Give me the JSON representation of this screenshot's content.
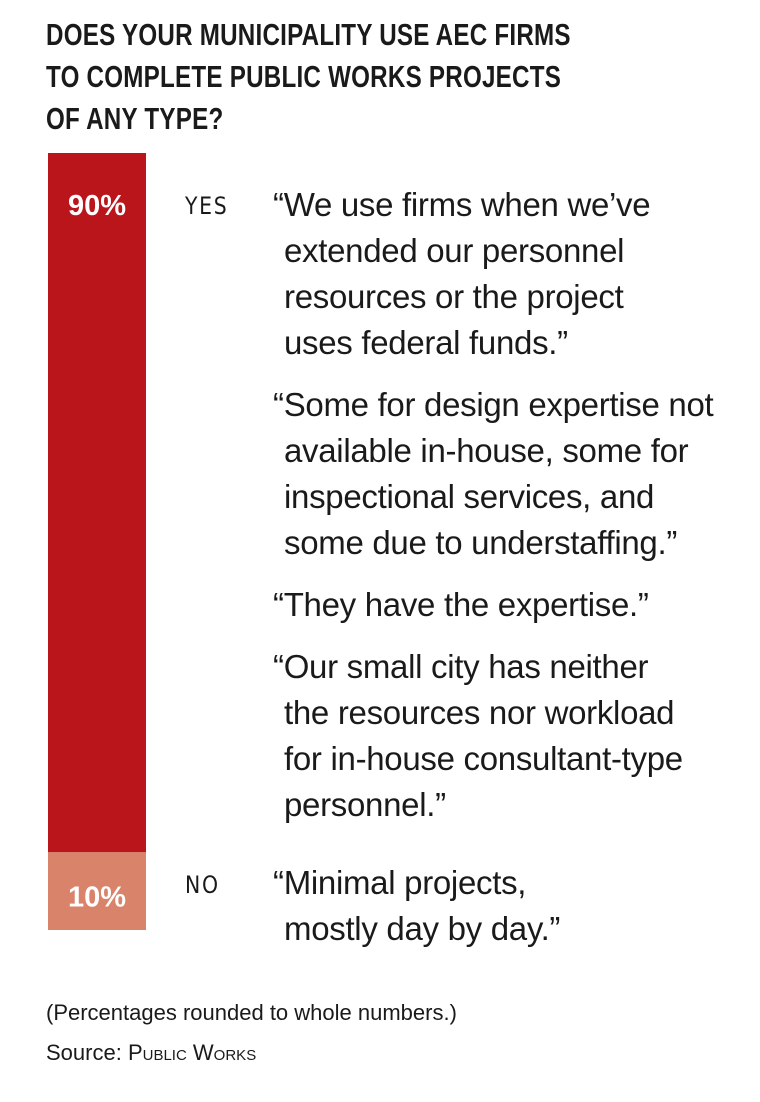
{
  "chart_data": {
    "type": "bar",
    "stacked": true,
    "title": "DOES YOUR MUNICIPALITY USE AEC FIRMS TO COMPLETE PUBLIC WORKS PROJECTS OF ANY TYPE?",
    "title_lines": [
      "DOES YOUR MUNICIPALITY USE AEC FIRMS",
      "TO COMPLETE PUBLIC WORKS PROJECTS",
      "OF ANY TYPE?"
    ],
    "categories": [
      "YES",
      "NO"
    ],
    "values": [
      90,
      10
    ],
    "labels": [
      "90%",
      "10%"
    ],
    "colors": [
      "#bb151c",
      "#d9836b"
    ],
    "ylim": [
      0,
      100
    ]
  },
  "quotes": {
    "yes": [
      [
        "“We use firms when we’ve",
        "extended our personnel",
        "resources or the project",
        "uses federal funds.”"
      ],
      [
        "“Some for design expertise not",
        "available in-house, some for",
        "inspectional services, and",
        "some due to understaffing.”"
      ],
      [
        "“They have the expertise.”"
      ],
      [
        "“Our small city has neither",
        "the resources nor workload",
        "for in-house consultant-type",
        "personnel.”"
      ]
    ],
    "no": [
      [
        "“Minimal projects,",
        "mostly day by day.”"
      ]
    ]
  },
  "footer": {
    "note": "(Percentages rounded to whole numbers.)",
    "source_label": "Source:",
    "source_name": "Public Works"
  }
}
